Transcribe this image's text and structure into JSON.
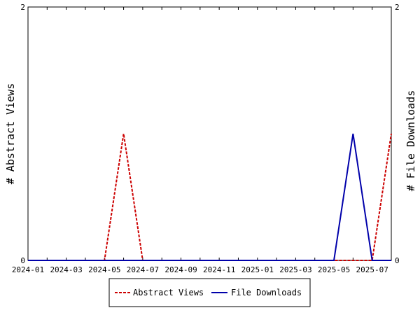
{
  "chart_data": {
    "type": "line",
    "x": [
      "2024-01",
      "2024-02",
      "2024-03",
      "2024-04",
      "2024-05",
      "2024-06",
      "2024-07",
      "2024-08",
      "2024-09",
      "2024-10",
      "2024-11",
      "2024-12",
      "2025-01",
      "2025-02",
      "2025-03",
      "2025-04",
      "2025-05",
      "2025-06",
      "2025-07",
      "2025-08"
    ],
    "x_ticks": [
      "2024-01",
      "2024-03",
      "2024-05",
      "2024-07",
      "2024-09",
      "2024-11",
      "2025-01",
      "2025-03",
      "2025-05",
      "2025-07"
    ],
    "series": [
      {
        "name": "Abstract Views",
        "axis": "left",
        "color": "#cc0000",
        "dash": "dashed",
        "values": [
          0,
          0,
          0,
          0,
          0,
          1,
          0,
          0,
          0,
          0,
          0,
          0,
          0,
          0,
          0,
          0,
          0,
          0,
          0,
          1
        ]
      },
      {
        "name": "File Downloads",
        "axis": "right",
        "color": "#0000aa",
        "dash": "solid",
        "values": [
          0,
          0,
          0,
          0,
          0,
          0,
          0,
          0,
          0,
          0,
          0,
          0,
          0,
          0,
          0,
          0,
          0,
          1,
          0,
          0
        ]
      }
    ],
    "ylabel_left": "# Abstract Views",
    "ylabel_right": "# File Downloads",
    "ylim_left": [
      0,
      2
    ],
    "ylim_right": [
      0,
      2
    ],
    "yticks_left": [
      "0",
      "2"
    ],
    "yticks_right": [
      "0",
      "2"
    ],
    "legend_position": "bottom-center",
    "grid": false
  }
}
